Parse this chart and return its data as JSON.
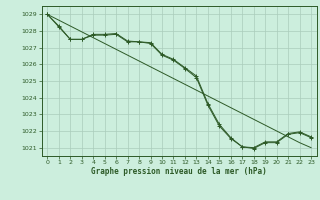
{
  "title": "Graphe pression niveau de la mer (hPa)",
  "bg_color": "#cceedd",
  "grid_color": "#aaccbb",
  "line_color": "#2d5a27",
  "ylim": [
    1020.5,
    1029.5
  ],
  "xlim": [
    -0.5,
    23.5
  ],
  "yticks": [
    1021,
    1022,
    1023,
    1024,
    1025,
    1026,
    1027,
    1028,
    1029
  ],
  "xticks": [
    0,
    1,
    2,
    3,
    4,
    5,
    6,
    7,
    8,
    9,
    10,
    11,
    12,
    13,
    14,
    15,
    16,
    17,
    18,
    19,
    20,
    21,
    22,
    23
  ],
  "series_straight_y": [
    1029.0,
    1028.65,
    1028.3,
    1027.95,
    1027.6,
    1027.25,
    1026.9,
    1026.55,
    1026.2,
    1025.85,
    1025.5,
    1025.15,
    1024.8,
    1024.45,
    1024.1,
    1023.75,
    1023.4,
    1023.05,
    1022.7,
    1022.35,
    1022.0,
    1021.65,
    1021.3,
    1021.0
  ],
  "series_main_y": [
    1029.0,
    1028.3,
    1027.5,
    1027.5,
    1027.8,
    1027.8,
    1027.85,
    1027.4,
    1027.35,
    1027.3,
    1026.6,
    1026.3,
    1025.8,
    1025.3,
    1023.65,
    1022.4,
    1021.6,
    1021.05,
    1021.0,
    1021.35,
    1021.35,
    1021.85,
    1021.95,
    1021.65
  ],
  "series_alt_y": [
    1029.0,
    1028.25,
    1027.5,
    1027.5,
    1027.75,
    1027.75,
    1027.8,
    1027.35,
    1027.35,
    1027.25,
    1026.55,
    1026.25,
    1025.75,
    1025.2,
    1023.55,
    1022.3,
    1021.55,
    1021.05,
    1020.95,
    1021.3,
    1021.3,
    1021.8,
    1021.9,
    1021.6
  ]
}
